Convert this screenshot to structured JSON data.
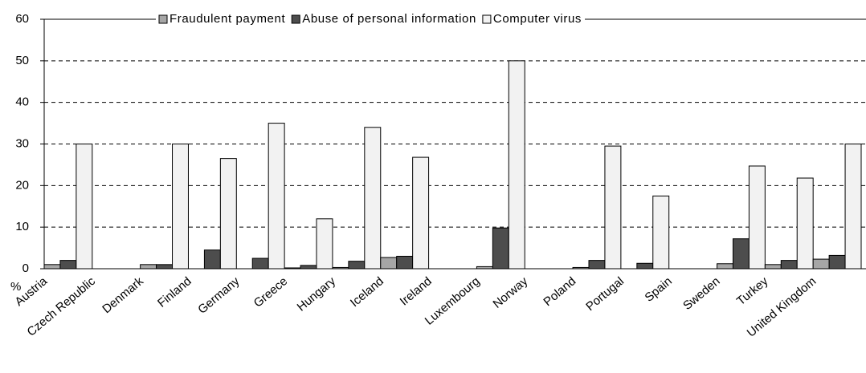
{
  "chart_data": {
    "type": "bar",
    "y_label": "%",
    "categories": [
      "Austria",
      "Czech Republic",
      "Denmark",
      "Finland",
      "Germany",
      "Greece",
      "Hungary",
      "Iceland",
      "Ireland",
      "Luxembourg",
      "Norway",
      "Poland",
      "Portugal",
      "Spain",
      "Sweden",
      "Turkey",
      "United Kingdom"
    ],
    "series": [
      {
        "name": "Fraudulent payment",
        "color": "#a6a6a6",
        "values": [
          1,
          null,
          1,
          null,
          null,
          0.2,
          0.3,
          2.7,
          null,
          0.5,
          null,
          0.3,
          null,
          null,
          1.2,
          1,
          2.3
        ]
      },
      {
        "name": "Abuse of personal information",
        "color": "#4d4d4d",
        "values": [
          2,
          null,
          1,
          4.5,
          2.5,
          0.8,
          1.8,
          3,
          null,
          9.8,
          null,
          2,
          1.3,
          null,
          7.2,
          2,
          3.2
        ]
      },
      {
        "name": "Computer virus",
        "color": "#f2f2f2",
        "values": [
          30,
          null,
          30,
          26.5,
          35,
          12,
          34,
          26.8,
          null,
          50,
          null,
          29.5,
          17.5,
          null,
          24.7,
          21.8,
          30
        ]
      }
    ],
    "ylim": [
      0,
      60
    ],
    "yticks": [
      0,
      10,
      20,
      30,
      40,
      50,
      60
    ],
    "grid": true,
    "legend": "top"
  }
}
